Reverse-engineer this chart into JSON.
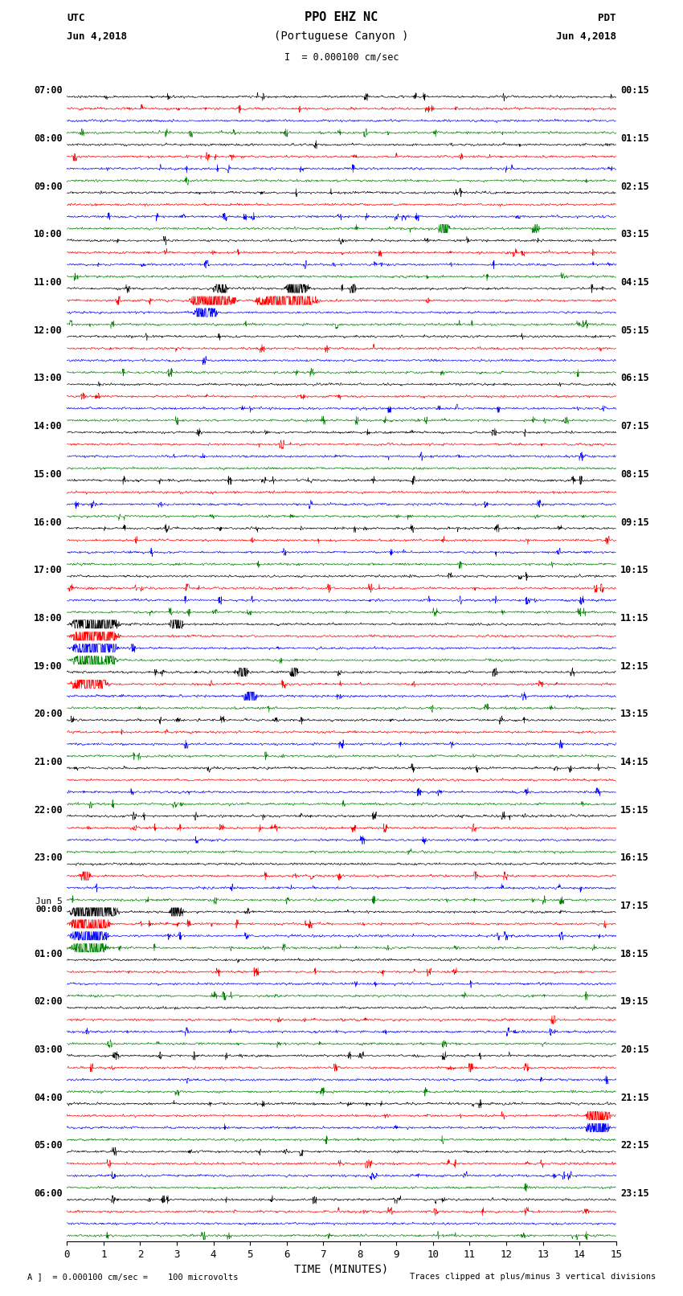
{
  "title_line1": "PPO EHZ NC",
  "title_line2": "(Portuguese Canyon )",
  "scale_bar": "I  = 0.000100 cm/sec",
  "utc_label": "UTC",
  "utc_date": "Jun 4,2018",
  "pdt_label": "PDT",
  "pdt_date": "Jun 4,2018",
  "xlabel": "TIME (MINUTES)",
  "footer_left": "A ]  = 0.000100 cm/sec =    100 microvolts",
  "footer_right": "Traces clipped at plus/minus 3 vertical divisions",
  "left_times": [
    "07:00",
    "08:00",
    "09:00",
    "10:00",
    "11:00",
    "12:00",
    "13:00",
    "14:00",
    "15:00",
    "16:00",
    "17:00",
    "18:00",
    "19:00",
    "20:00",
    "21:00",
    "22:00",
    "23:00",
    "Jun 5\n00:00",
    "01:00",
    "02:00",
    "03:00",
    "04:00",
    "05:00",
    "06:00"
  ],
  "right_times": [
    "00:15",
    "01:15",
    "02:15",
    "03:15",
    "04:15",
    "05:15",
    "06:15",
    "07:15",
    "08:15",
    "09:15",
    "10:15",
    "11:15",
    "12:15",
    "13:15",
    "14:15",
    "15:15",
    "16:15",
    "17:15",
    "18:15",
    "19:15",
    "20:15",
    "21:15",
    "22:15",
    "23:15"
  ],
  "num_hours": 24,
  "traces_per_hour": 4,
  "colors": [
    "black",
    "red",
    "blue",
    "green"
  ],
  "bg_color": "#ffffff",
  "xmin": 0,
  "xmax": 15,
  "xticks": [
    0,
    1,
    2,
    3,
    4,
    5,
    6,
    7,
    8,
    9,
    10,
    11,
    12,
    13,
    14,
    15
  ],
  "n_points": 1800,
  "base_amplitude": 0.06,
  "clip_val": 0.35
}
